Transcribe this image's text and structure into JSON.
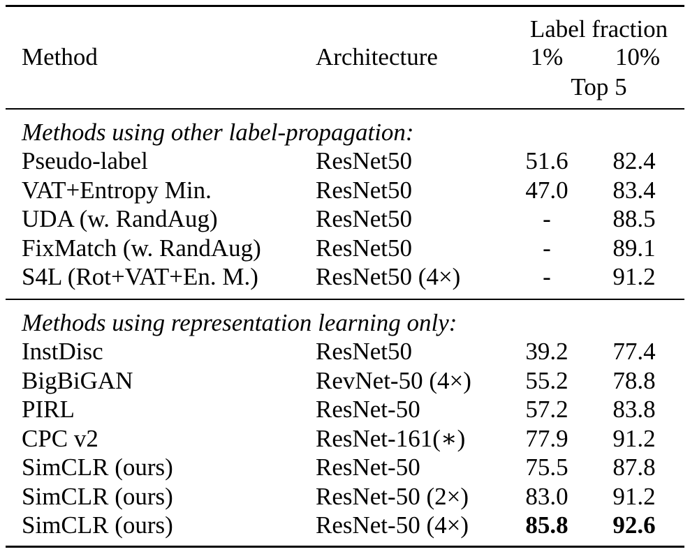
{
  "header": {
    "method": "Method",
    "architecture": "Architecture",
    "group": "Label fraction",
    "col1": "1%",
    "col2": "10%",
    "metric": "Top 5"
  },
  "sections": [
    {
      "title": "Methods using other label-propagation:",
      "rows": [
        {
          "method": "Pseudo-label",
          "arch": "ResNet50",
          "v1": "51.6",
          "v10": "82.4"
        },
        {
          "method": "VAT+Entropy Min.",
          "arch": "ResNet50",
          "v1": "47.0",
          "v10": "83.4"
        },
        {
          "method": "UDA (w. RandAug)",
          "arch": "ResNet50",
          "v1": "-",
          "v10": "88.5"
        },
        {
          "method": "FixMatch (w. RandAug)",
          "arch": "ResNet50",
          "v1": "-",
          "v10": "89.1"
        },
        {
          "method": "S4L (Rot+VAT+En. M.)",
          "arch": "ResNet50 (4×)",
          "v1": "-",
          "v10": "91.2"
        }
      ]
    },
    {
      "title": "Methods using representation learning only:",
      "rows": [
        {
          "method": "InstDisc",
          "arch": "ResNet50",
          "v1": "39.2",
          "v10": "77.4"
        },
        {
          "method": "BigBiGAN",
          "arch": "RevNet-50 (4×)",
          "v1": "55.2",
          "v10": "78.8"
        },
        {
          "method": "PIRL",
          "arch": "ResNet-50",
          "v1": "57.2",
          "v10": "83.8"
        },
        {
          "method": "CPC v2",
          "arch": "ResNet-161(∗)",
          "v1": "77.9",
          "v10": "91.2"
        },
        {
          "method": "SimCLR (ours)",
          "arch": "ResNet-50",
          "v1": "75.5",
          "v10": "87.8"
        },
        {
          "method": "SimCLR (ours)",
          "arch": "ResNet-50 (2×)",
          "v1": "83.0",
          "v10": "91.2"
        },
        {
          "method": "SimCLR (ours)",
          "arch": "ResNet-50 (4×)",
          "v1": "85.8",
          "v10": "92.6",
          "bold": true
        }
      ]
    }
  ]
}
